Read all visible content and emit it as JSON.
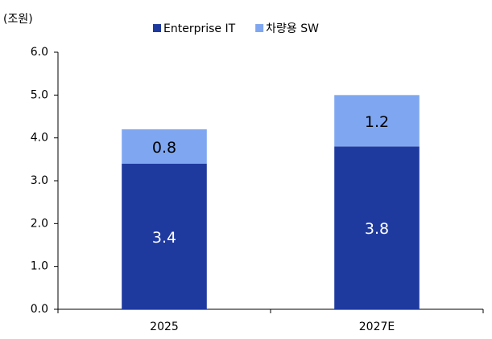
{
  "chart_data": {
    "type": "stacked_bar",
    "y_axis_label": "(조원)",
    "categories": [
      "2025",
      "2027E"
    ],
    "series": [
      {
        "name": "Enterprise IT",
        "color": "#1f3a9f",
        "values": [
          3.4,
          3.8
        ]
      },
      {
        "name": "차량용 SW",
        "color": "#7fa7f1",
        "values": [
          0.8,
          1.2
        ]
      }
    ],
    "ylim": [
      0,
      6
    ],
    "yticks": [
      {
        "value": 0,
        "label": "0.0"
      },
      {
        "value": 1,
        "label": "1.0"
      },
      {
        "value": 2,
        "label": "2.0"
      },
      {
        "value": 3,
        "label": "3.0"
      },
      {
        "value": 4,
        "label": "4.0"
      },
      {
        "value": 5,
        "label": "5.0"
      },
      {
        "value": 6,
        "label": "6.0"
      }
    ],
    "grid": false,
    "legend": "top"
  }
}
